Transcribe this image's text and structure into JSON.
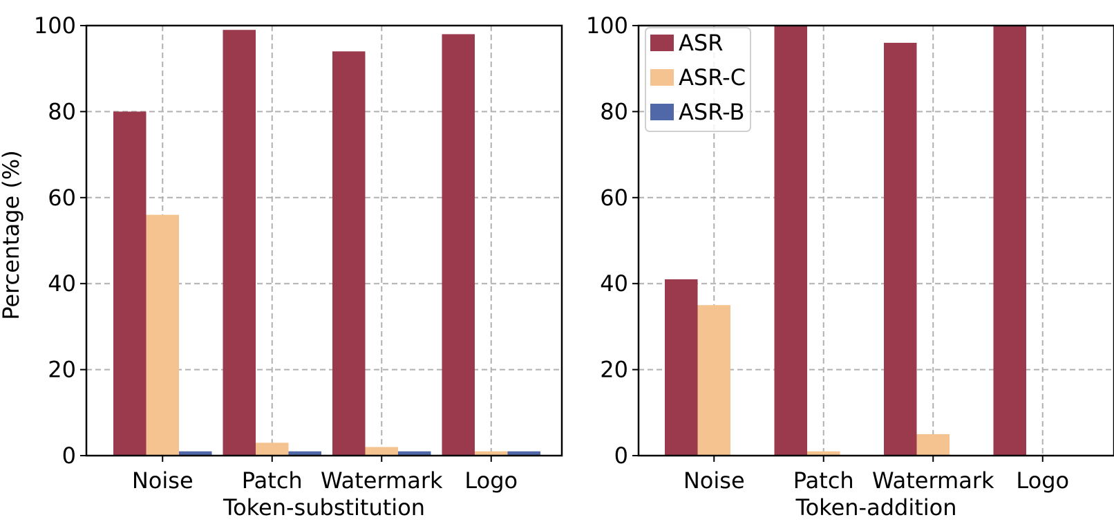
{
  "figure": {
    "ylabel": "Percentage (%)"
  },
  "legend": {
    "entries": [
      {
        "label": "ASR",
        "color": "#9b3a4d"
      },
      {
        "label": "ASR-C",
        "color": "#f4c38f"
      },
      {
        "label": "ASR-B",
        "color": "#5068a8"
      }
    ]
  },
  "chart_data": [
    {
      "type": "bar",
      "xlabel": "Token-substitution",
      "ylabel": "Percentage (%)",
      "categories": [
        "Noise",
        "Patch",
        "Watermark",
        "Logo"
      ],
      "ylim": [
        0,
        100
      ],
      "yticks": [
        0,
        20,
        40,
        60,
        80,
        100
      ],
      "grid": true,
      "series": [
        {
          "name": "ASR",
          "color": "#9b3a4d",
          "values": [
            80,
            99,
            94,
            98
          ]
        },
        {
          "name": "ASR-C",
          "color": "#f4c38f",
          "values": [
            56,
            3,
            2,
            1
          ]
        },
        {
          "name": "ASR-B",
          "color": "#5068a8",
          "values": [
            1,
            1,
            1,
            1
          ]
        }
      ]
    },
    {
      "type": "bar",
      "xlabel": "Token-addition",
      "ylabel": "",
      "categories": [
        "Noise",
        "Patch",
        "Watermark",
        "Logo"
      ],
      "ylim": [
        0,
        100
      ],
      "yticks": [
        0,
        20,
        40,
        60,
        80,
        100
      ],
      "grid": true,
      "legend_position": "top-left",
      "series": [
        {
          "name": "ASR",
          "color": "#9b3a4d",
          "values": [
            41,
            100,
            96,
            100
          ]
        },
        {
          "name": "ASR-C",
          "color": "#f4c38f",
          "values": [
            35,
            1,
            5,
            0
          ]
        },
        {
          "name": "ASR-B",
          "color": "#5068a8",
          "values": [
            0,
            0,
            0,
            0
          ]
        }
      ]
    }
  ]
}
